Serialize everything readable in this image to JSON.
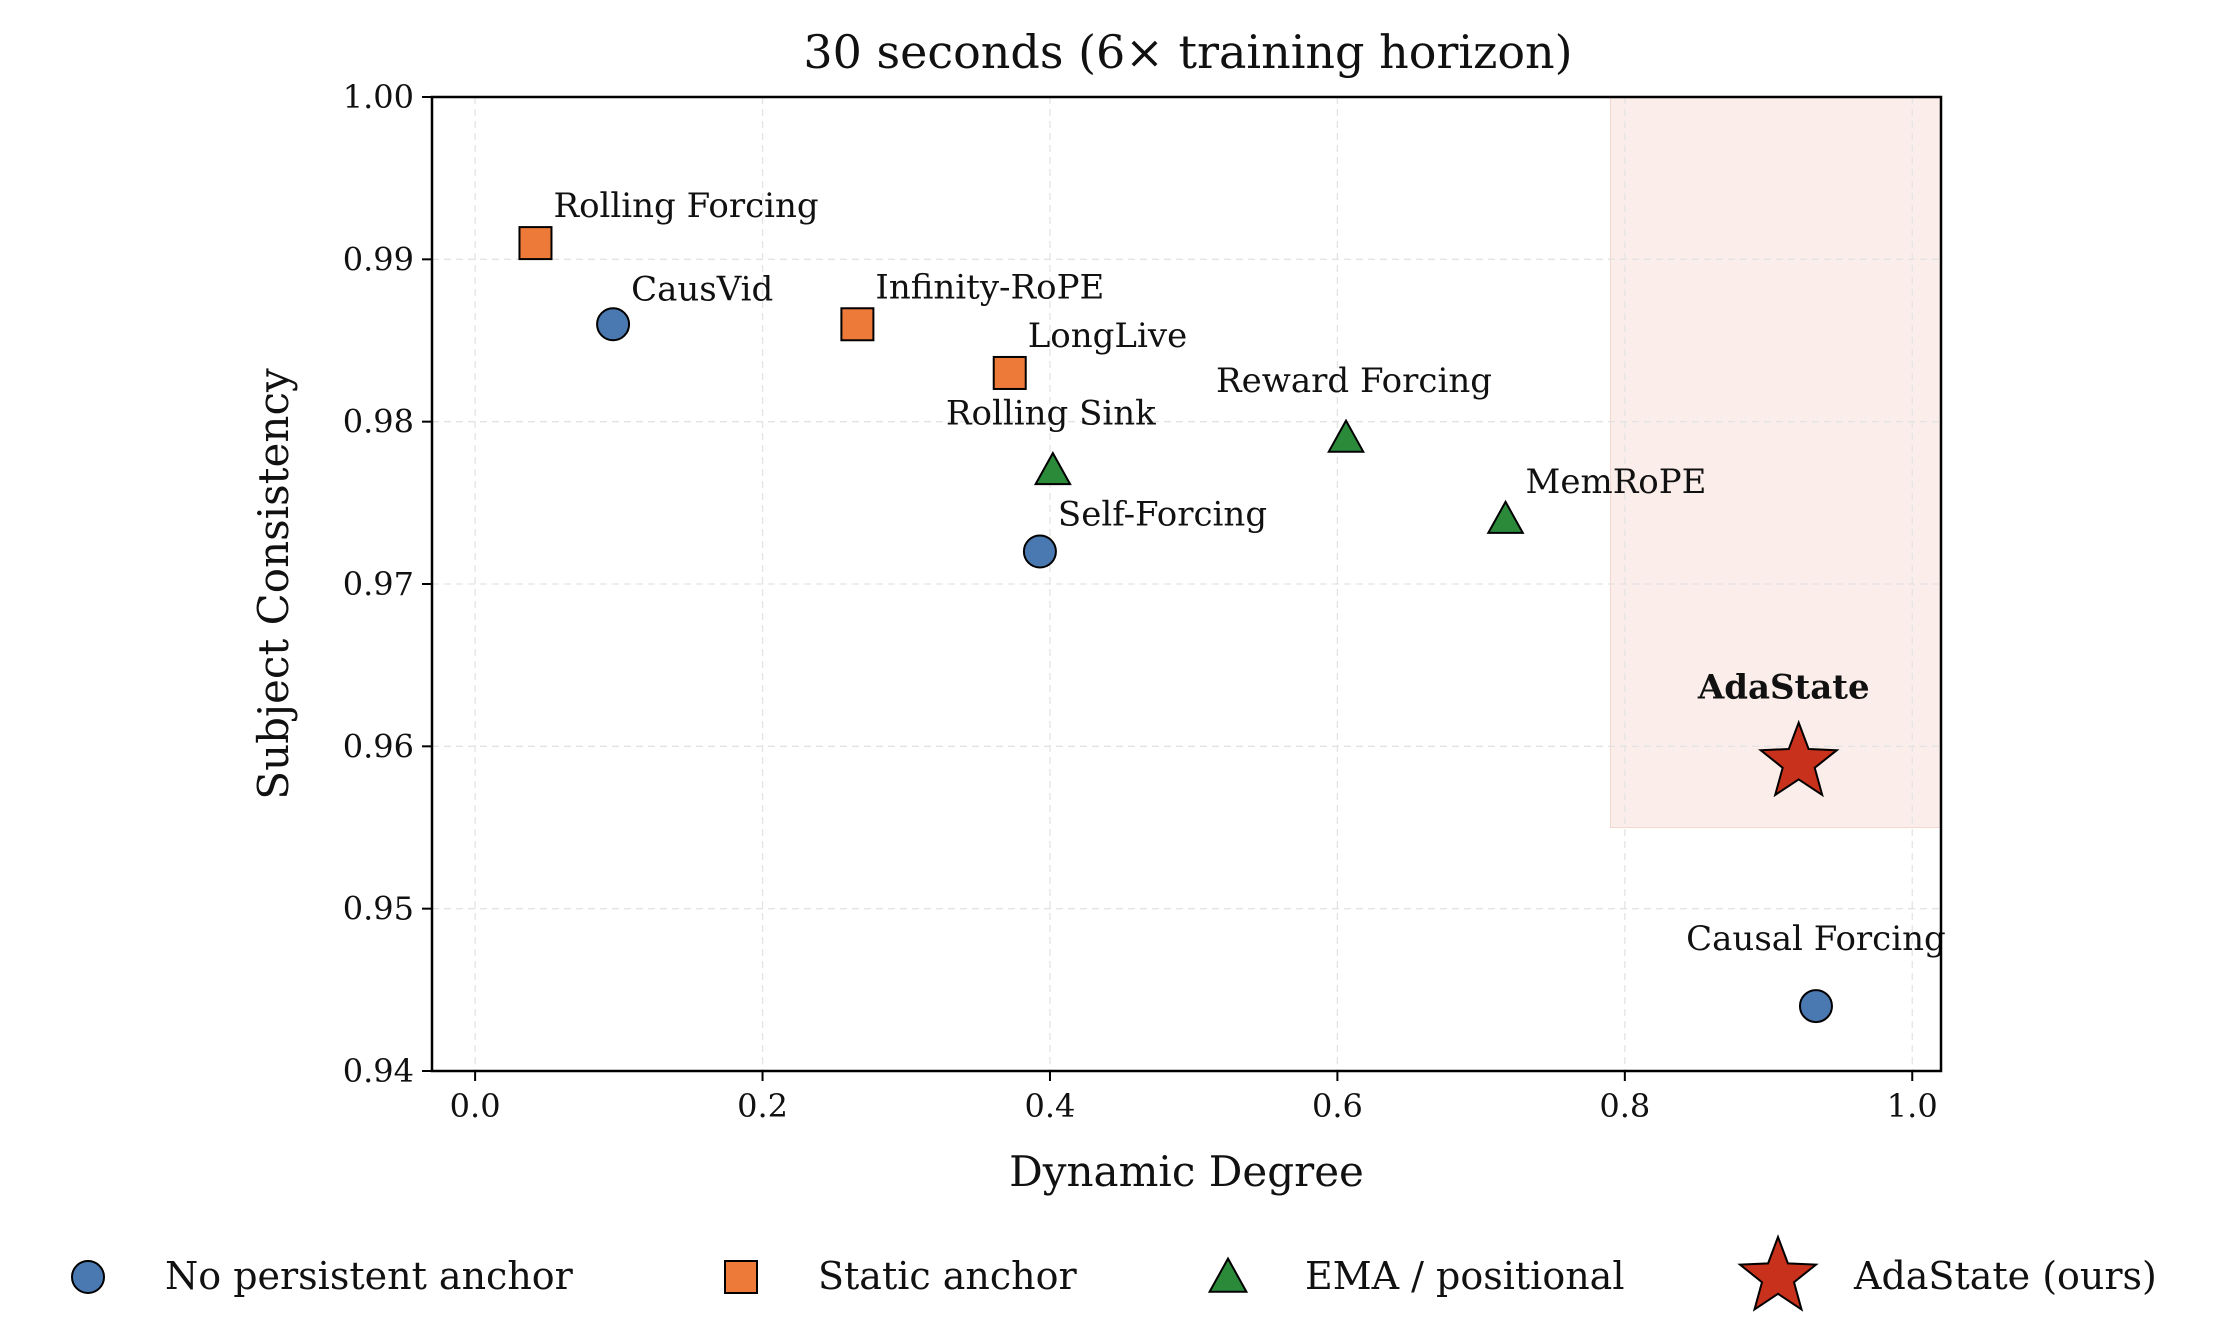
{
  "chart_data": {
    "type": "scatter",
    "title": "30 seconds  (6× training horizon)",
    "xlabel": "Dynamic Degree",
    "ylabel": "Subject Consistency",
    "xlim": [
      -0.03,
      1.02
    ],
    "ylim": [
      0.94,
      1.0
    ],
    "xticks": [
      "0.0",
      "0.2",
      "0.4",
      "0.6",
      "0.8",
      "1.0"
    ],
    "xtick_values": [
      0.0,
      0.2,
      0.4,
      0.6,
      0.8,
      1.0
    ],
    "yticks": [
      "0.94",
      "0.95",
      "0.96",
      "0.97",
      "0.98",
      "0.99",
      "1.00"
    ],
    "ytick_values": [
      0.94,
      0.95,
      0.96,
      0.97,
      0.98,
      0.99,
      1.0
    ],
    "grid": true,
    "highlight_region": {
      "x": [
        0.79,
        1.02
      ],
      "y": [
        0.955,
        1.0
      ],
      "color": "#fbeeea"
    },
    "legend_position": "bottom",
    "series": [
      {
        "name": "No persistent anchor",
        "marker": "circle",
        "color": "#4a79b2",
        "points": [
          {
            "label": "CausVid",
            "x": 0.096,
            "y": 0.986
          },
          {
            "label": "Self-Forcing",
            "x": 0.393,
            "y": 0.972
          },
          {
            "label": "Causal Forcing",
            "x": 0.933,
            "y": 0.944
          }
        ]
      },
      {
        "name": "Static anchor",
        "marker": "square",
        "color": "#ee7a3a",
        "points": [
          {
            "label": "Rolling Forcing",
            "x": 0.042,
            "y": 0.991
          },
          {
            "label": "Infinity-RoPE",
            "x": 0.266,
            "y": 0.986
          },
          {
            "label": "LongLive",
            "x": 0.372,
            "y": 0.983
          }
        ]
      },
      {
        "name": "EMA / positional",
        "marker": "triangle",
        "color": "#2b8a3a",
        "points": [
          {
            "label": "Rolling Sink",
            "x": 0.402,
            "y": 0.977
          },
          {
            "label": "Reward Forcing",
            "x": 0.606,
            "y": 0.979
          },
          {
            "label": "MemRoPE",
            "x": 0.717,
            "y": 0.974
          }
        ]
      },
      {
        "name": "AdaState (ours)",
        "marker": "star",
        "color": "#c8321c",
        "points": [
          {
            "label": "AdaState",
            "x": 0.921,
            "y": 0.959,
            "bold": true
          }
        ]
      }
    ]
  }
}
